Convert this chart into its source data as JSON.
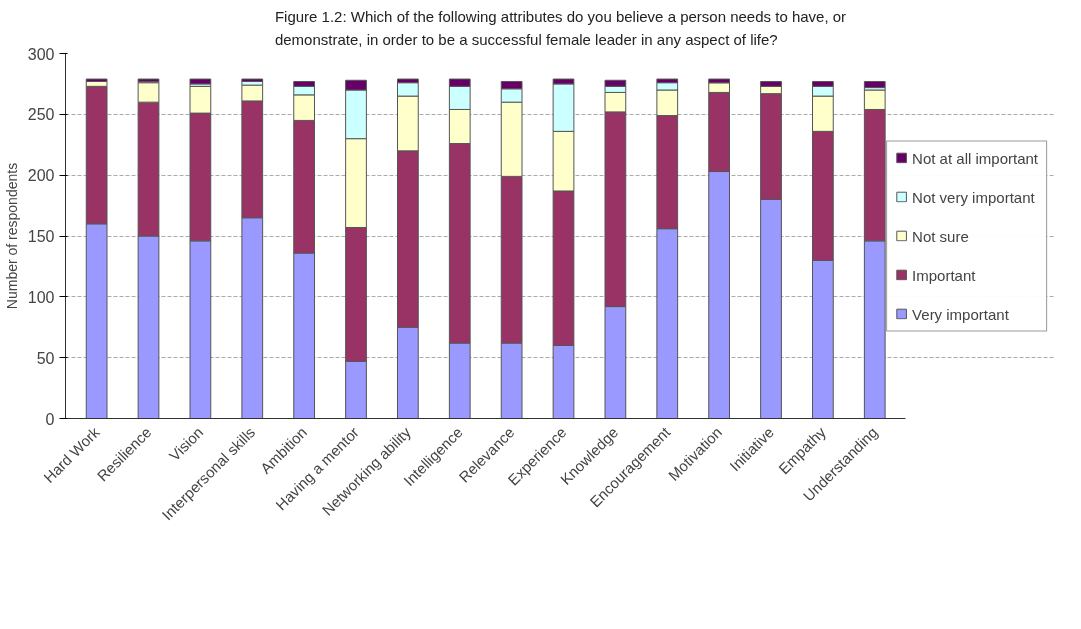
{
  "chart_data": {
    "type": "bar",
    "stacked": true,
    "title": "Figure 1.2: Which of the following attributes do you believe a person needs to have, or demonstrate, in order to be a successful female leader in any aspect of life?",
    "ylabel": "Number of respondents",
    "categories": [
      "Hard Work",
      "Resilience",
      "Vision",
      "Interpersonal skills",
      "Ambition",
      "Having a mentor",
      "Networking ability",
      "Intelligence",
      "Relevance",
      "Experience",
      "Knowledge",
      "Encouragement",
      "Motivation",
      "Initiative",
      "Empathy",
      "Understanding"
    ],
    "series": [
      {
        "name": "Very important",
        "color": "#9999ff",
        "values": [
          160,
          150,
          146,
          165,
          136,
          47,
          75,
          62,
          62,
          60,
          92,
          156,
          203,
          180,
          130,
          146
        ]
      },
      {
        "name": "Important",
        "color": "#993366",
        "values": [
          113,
          110,
          105,
          96,
          109,
          110,
          145,
          164,
          137,
          127,
          160,
          93,
          65,
          87,
          106,
          108
        ]
      },
      {
        "name": "Not sure",
        "color": "#ffffcc",
        "values": [
          4,
          16,
          22,
          13,
          21,
          73,
          45,
          28,
          61,
          49,
          16,
          21,
          8,
          6,
          29,
          16
        ]
      },
      {
        "name": "Not very important",
        "color": "#ccffff",
        "values": [
          0,
          1,
          2,
          3,
          7,
          40,
          11,
          19,
          11,
          39,
          5,
          6,
          0,
          null,
          8,
          2
        ]
      },
      {
        "name": "Not at all important",
        "color": "#660066",
        "values": [
          2,
          2,
          4,
          2,
          4,
          8,
          3,
          6,
          6,
          4,
          5,
          3,
          3,
          4,
          4,
          5
        ]
      }
    ],
    "ylim": [
      0,
      300
    ],
    "yticks": [
      0,
      50,
      100,
      150,
      200,
      250,
      300
    ],
    "grid": "y",
    "legend": "right"
  }
}
